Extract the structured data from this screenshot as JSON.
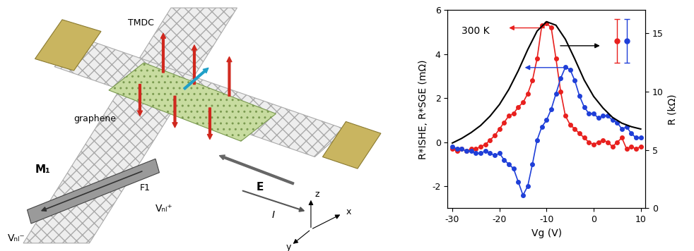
{
  "schematic": {
    "tmdc": "TMDC",
    "graphene": "graphene",
    "magnetization": "M₁",
    "ferromagnet": "F1",
    "v_minus": "Vₙₗ⁻",
    "v_plus": "Vₙₗ⁺",
    "field": "E",
    "current": "I",
    "axes": [
      "x",
      "y",
      "z"
    ]
  },
  "chart_data": {
    "type": "line",
    "annotation": "300 K",
    "xlabel": "Vg (V)",
    "ylabel": "R*ISHE, R*SGE (mΩ)",
    "y2label": "R (kΩ)",
    "xlim": [
      -31,
      11
    ],
    "xticks": [
      -30,
      -20,
      -10,
      0,
      10
    ],
    "ylim": [
      -3,
      6
    ],
    "yticks": [
      -2,
      0,
      2,
      4,
      6
    ],
    "y2lim": [
      0,
      17
    ],
    "y2ticks": [
      0,
      5,
      10,
      15
    ],
    "series": [
      {
        "type": "line",
        "color": "#e8201e",
        "marker": "circle",
        "line_style": "solid",
        "x": [
          -30,
          -29,
          -28,
          -27,
          -26,
          -25,
          -24,
          -23,
          -22,
          -21,
          -20,
          -19,
          -18,
          -17,
          -16,
          -15,
          -14,
          -13,
          -12,
          -11,
          -10,
          -9,
          -8,
          -7,
          -6,
          -5,
          -4,
          -3,
          -2,
          -1,
          0,
          1,
          2,
          3,
          4,
          5,
          6,
          7,
          8,
          9,
          10
        ],
        "values": [
          -0.3,
          -0.4,
          -0.3,
          -0.4,
          -0.3,
          -0.3,
          -0.2,
          -0.1,
          0.1,
          0.3,
          0.6,
          0.9,
          1.2,
          1.3,
          1.6,
          1.8,
          2.2,
          2.8,
          3.8,
          5.3,
          5.4,
          5.2,
          3.8,
          2.3,
          1.2,
          0.8,
          0.6,
          0.4,
          0.2,
          0.0,
          -0.1,
          0.0,
          0.1,
          0.0,
          -0.2,
          0.0,
          0.2,
          -0.3,
          -0.2,
          -0.3,
          -0.2
        ]
      },
      {
        "type": "line",
        "color": "#1f3fd8",
        "marker": "circle",
        "line_style": "solid",
        "x": [
          -30,
          -29,
          -28,
          -27,
          -26,
          -25,
          -24,
          -23,
          -22,
          -21,
          -20,
          -19,
          -18,
          -17,
          -16,
          -15,
          -14,
          -13,
          -12,
          -11,
          -10,
          -9,
          -8,
          -7,
          -6,
          -5,
          -4,
          -3,
          -2,
          -1,
          0,
          1,
          2,
          3,
          4,
          5,
          6,
          7,
          8,
          9,
          10
        ],
        "values": [
          -0.2,
          -0.3,
          -0.3,
          -0.4,
          -0.4,
          -0.5,
          -0.5,
          -0.4,
          -0.5,
          -0.6,
          -0.5,
          -0.8,
          -1.0,
          -1.2,
          -1.8,
          -2.4,
          -2.0,
          -1.0,
          0.1,
          0.7,
          1.0,
          1.5,
          2.2,
          2.9,
          3.4,
          3.3,
          2.8,
          2.1,
          1.6,
          1.3,
          1.3,
          1.1,
          1.2,
          1.2,
          1.0,
          0.9,
          0.6,
          0.7,
          0.4,
          0.2,
          0.2
        ]
      },
      {
        "type": "line",
        "color": "#000000",
        "marker": "none",
        "line_style": "solid",
        "axis": "y2",
        "x": [
          -30,
          -28,
          -26,
          -24,
          -22,
          -20,
          -18,
          -16,
          -14,
          -12,
          -10,
          -8,
          -6,
          -4,
          -2,
          0,
          2,
          4,
          6,
          8,
          10
        ],
        "values": [
          5.6,
          6.0,
          6.5,
          7.1,
          7.9,
          8.9,
          10.2,
          11.8,
          13.6,
          15.2,
          16.0,
          15.7,
          14.5,
          12.8,
          11.0,
          9.6,
          8.6,
          7.8,
          7.3,
          7.0,
          6.8
        ]
      },
      {
        "type": "errorbar",
        "color": "#e8201e",
        "marker": "circle",
        "x": [
          5
        ],
        "values": [
          4.6
        ],
        "error": [
          1.0
        ]
      },
      {
        "type": "errorbar",
        "color": "#1f3fd8",
        "marker": "circle",
        "x": [
          7
        ],
        "values": [
          4.6
        ],
        "error": [
          1.0
        ]
      }
    ]
  }
}
